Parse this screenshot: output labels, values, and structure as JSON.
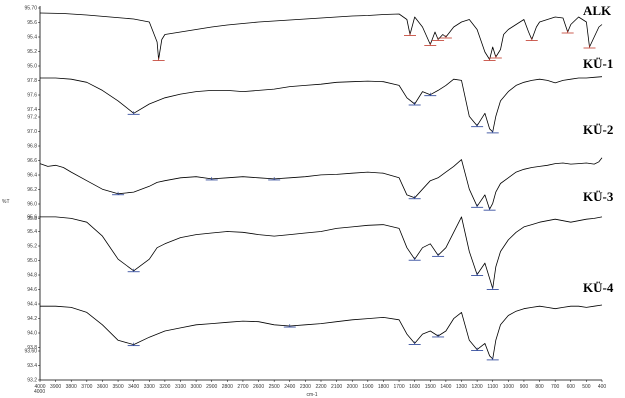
{
  "chart_data": {
    "type": "line",
    "title": "",
    "xlabel": "cm-1",
    "ylabel": "%T",
    "xlim": [
      4000,
      400
    ],
    "x_ticks": [
      "4000",
      "3900",
      "3800",
      "3700",
      "3600",
      "3500",
      "3400",
      "3300",
      "3200",
      "3100",
      "3000",
      "2900",
      "2800",
      "2700",
      "2600",
      "2500",
      "2400",
      "2300",
      "2200",
      "2100",
      "2000",
      "1900",
      "1800",
      "1700",
      "1600",
      "1500",
      "1400",
      "1300",
      "1200",
      "1100",
      "1000",
      "900",
      "800",
      "700",
      "600",
      "500",
      "400"
    ],
    "y_ticks_top": [
      "95.70",
      "95.6",
      "95.4",
      "95.2",
      "95.0",
      "97.8",
      "97.6",
      "97.4"
    ],
    "y_ticks_mid": [
      "97.2",
      "97.0",
      "96.8",
      "96.6",
      "96.4",
      "96.2",
      "96.0",
      "95.8"
    ],
    "y_ticks_low": [
      "95.6",
      "95.4",
      "95.2",
      "95.0",
      "94.8",
      "94.6",
      "94.4",
      "94.2",
      "94.0",
      "93.8"
    ],
    "y_ticks_bottom": [
      "93.60",
      "93.4",
      "93.2"
    ],
    "grid": false,
    "legend": "none",
    "series": [
      {
        "name": "ALK",
        "x": [
          4000,
          3850,
          3700,
          3550,
          3400,
          3300,
          3250,
          3240,
          3220,
          3200,
          3100,
          3000,
          2900,
          2800,
          2700,
          2600,
          2500,
          2400,
          2300,
          2200,
          2100,
          2000,
          1900,
          1800,
          1700,
          1650,
          1630,
          1600,
          1550,
          1500,
          1470,
          1450,
          1420,
          1400,
          1350,
          1300,
          1250,
          1200,
          1150,
          1120,
          1100,
          1080,
          1050,
          1030,
          1000,
          950,
          900,
          870,
          850,
          820,
          800,
          750,
          700,
          650,
          620,
          600,
          550,
          500,
          480,
          450,
          420,
          400
        ],
        "y": [
          0.98,
          0.97,
          0.94,
          0.9,
          0.86,
          0.8,
          0.4,
          0.05,
          0.45,
          0.55,
          0.6,
          0.65,
          0.7,
          0.74,
          0.77,
          0.8,
          0.82,
          0.84,
          0.86,
          0.88,
          0.9,
          0.92,
          0.93,
          0.95,
          0.96,
          0.85,
          0.55,
          0.9,
          0.7,
          0.35,
          0.6,
          0.45,
          0.55,
          0.5,
          0.7,
          0.8,
          0.85,
          0.65,
          0.2,
          0.05,
          0.3,
          0.1,
          0.25,
          0.55,
          0.65,
          0.75,
          0.85,
          0.6,
          0.45,
          0.7,
          0.8,
          0.85,
          0.9,
          0.88,
          0.6,
          0.75,
          0.9,
          0.8,
          0.3,
          0.5,
          0.7,
          0.75
        ]
      },
      {
        "name": "KÜ-1",
        "x": [
          4000,
          3900,
          3800,
          3700,
          3600,
          3500,
          3400,
          3300,
          3250,
          3200,
          3100,
          3000,
          2900,
          2800,
          2700,
          2600,
          2500,
          2400,
          2300,
          2200,
          2100,
          2000,
          1900,
          1800,
          1700,
          1650,
          1600,
          1550,
          1500,
          1450,
          1400,
          1350,
          1300,
          1250,
          1200,
          1150,
          1120,
          1100,
          1080,
          1050,
          1000,
          950,
          900,
          850,
          800,
          750,
          700,
          650,
          600,
          550,
          500,
          450,
          400
        ],
        "y": [
          0.92,
          0.92,
          0.9,
          0.85,
          0.72,
          0.55,
          0.35,
          0.5,
          0.55,
          0.6,
          0.66,
          0.7,
          0.72,
          0.72,
          0.7,
          0.72,
          0.74,
          0.78,
          0.8,
          0.82,
          0.85,
          0.86,
          0.87,
          0.86,
          0.8,
          0.6,
          0.5,
          0.7,
          0.65,
          0.72,
          0.8,
          0.9,
          0.88,
          0.3,
          0.15,
          0.35,
          0.1,
          0.05,
          0.3,
          0.55,
          0.7,
          0.8,
          0.85,
          0.88,
          0.9,
          0.88,
          0.84,
          0.88,
          0.9,
          0.92,
          0.92,
          0.93,
          0.94
        ]
      },
      {
        "name": "KÜ-2",
        "x": [
          4000,
          3950,
          3900,
          3850,
          3800,
          3700,
          3600,
          3500,
          3400,
          3300,
          3250,
          3200,
          3100,
          3000,
          2900,
          2800,
          2700,
          2600,
          2500,
          2400,
          2300,
          2200,
          2100,
          2000,
          1900,
          1800,
          1700,
          1650,
          1600,
          1550,
          1500,
          1450,
          1400,
          1350,
          1300,
          1250,
          1200,
          1150,
          1120,
          1100,
          1080,
          1050,
          1000,
          950,
          900,
          850,
          800,
          750,
          700,
          650,
          600,
          550,
          500,
          450,
          420,
          400
        ],
        "y": [
          0.85,
          0.8,
          0.82,
          0.78,
          0.7,
          0.55,
          0.4,
          0.32,
          0.35,
          0.45,
          0.52,
          0.55,
          0.6,
          0.62,
          0.58,
          0.6,
          0.62,
          0.6,
          0.58,
          0.6,
          0.62,
          0.65,
          0.66,
          0.68,
          0.7,
          0.68,
          0.6,
          0.3,
          0.25,
          0.4,
          0.55,
          0.6,
          0.7,
          0.8,
          0.92,
          0.4,
          0.1,
          0.3,
          0.05,
          0.15,
          0.35,
          0.5,
          0.6,
          0.7,
          0.75,
          0.78,
          0.8,
          0.82,
          0.85,
          0.86,
          0.84,
          0.85,
          0.86,
          0.84,
          0.88,
          0.95
        ]
      },
      {
        "name": "KÜ-3",
        "x": [
          4000,
          3900,
          3800,
          3700,
          3600,
          3500,
          3400,
          3300,
          3250,
          3200,
          3100,
          3000,
          2900,
          2800,
          2700,
          2600,
          2500,
          2400,
          2300,
          2200,
          2100,
          2000,
          1900,
          1800,
          1700,
          1650,
          1600,
          1550,
          1500,
          1450,
          1400,
          1350,
          1300,
          1250,
          1200,
          1150,
          1120,
          1100,
          1080,
          1050,
          1000,
          950,
          900,
          850,
          800,
          750,
          700,
          650,
          600,
          550,
          500,
          450,
          400
        ],
        "y": [
          0.95,
          0.95,
          0.93,
          0.88,
          0.7,
          0.4,
          0.25,
          0.4,
          0.55,
          0.6,
          0.68,
          0.72,
          0.74,
          0.76,
          0.75,
          0.72,
          0.7,
          0.72,
          0.74,
          0.76,
          0.8,
          0.82,
          0.84,
          0.85,
          0.8,
          0.55,
          0.4,
          0.55,
          0.6,
          0.45,
          0.55,
          0.75,
          0.95,
          0.5,
          0.2,
          0.35,
          0.15,
          0.02,
          0.3,
          0.5,
          0.65,
          0.75,
          0.82,
          0.85,
          0.88,
          0.9,
          0.92,
          0.9,
          0.88,
          0.9,
          0.92,
          0.93,
          0.95
        ]
      },
      {
        "name": "KÜ-4",
        "x": [
          4000,
          3900,
          3800,
          3700,
          3600,
          3500,
          3400,
          3300,
          3200,
          3100,
          3000,
          2900,
          2800,
          2700,
          2600,
          2500,
          2400,
          2300,
          2200,
          2100,
          2000,
          1900,
          1800,
          1700,
          1650,
          1600,
          1550,
          1500,
          1450,
          1400,
          1350,
          1300,
          1250,
          1200,
          1150,
          1120,
          1100,
          1080,
          1050,
          1000,
          950,
          900,
          850,
          800,
          750,
          700,
          650,
          600,
          550,
          500,
          450,
          400
        ],
        "y": [
          0.9,
          0.9,
          0.88,
          0.8,
          0.6,
          0.35,
          0.28,
          0.4,
          0.5,
          0.55,
          0.6,
          0.62,
          0.64,
          0.66,
          0.65,
          0.6,
          0.58,
          0.6,
          0.62,
          0.65,
          0.68,
          0.7,
          0.72,
          0.68,
          0.45,
          0.3,
          0.45,
          0.5,
          0.42,
          0.5,
          0.7,
          0.8,
          0.35,
          0.2,
          0.3,
          0.1,
          0.05,
          0.35,
          0.6,
          0.75,
          0.82,
          0.86,
          0.88,
          0.9,
          0.88,
          0.86,
          0.88,
          0.9,
          0.9,
          0.88,
          0.9,
          0.92
        ]
      }
    ]
  }
}
